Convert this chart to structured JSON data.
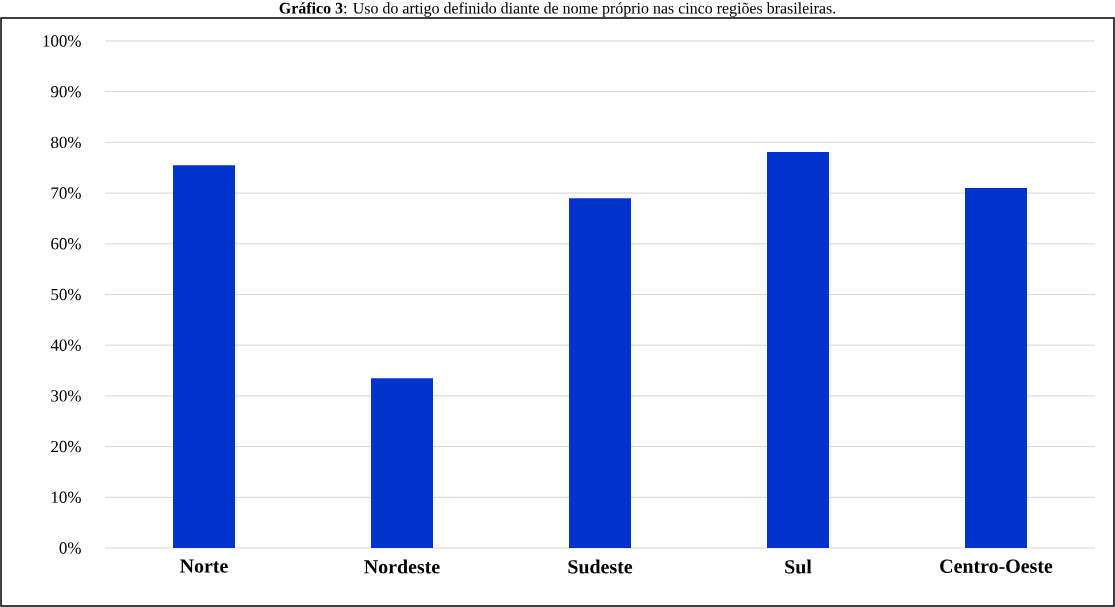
{
  "chart_data": {
    "type": "bar",
    "title": "**Gráfico 3**: Uso do artigo definido diante de nome próprio nas cinco regiões brasileiras.",
    "categories": [
      "Norte",
      "Nordeste",
      "Sudeste",
      "Sul",
      "Centro-Oeste"
    ],
    "values": [
      75.5,
      33.5,
      69.0,
      78.1,
      71.0
    ],
    "color": "#0033cc",
    "ylim": [
      0,
      100
    ],
    "yticks": [
      {
        "value": 0,
        "label": "0%"
      },
      {
        "value": 10,
        "label": "10%"
      },
      {
        "value": 20,
        "label": "20%"
      },
      {
        "value": 30,
        "label": "30%"
      },
      {
        "value": 40,
        "label": "40%"
      },
      {
        "value": 50,
        "label": "50%"
      },
      {
        "value": 60,
        "label": "60%"
      },
      {
        "value": 70,
        "label": "70%"
      },
      {
        "value": 80,
        "label": "80%"
      },
      {
        "value": 90,
        "label": "90%"
      },
      {
        "value": 100,
        "label": "100%"
      }
    ],
    "grid": "y"
  }
}
